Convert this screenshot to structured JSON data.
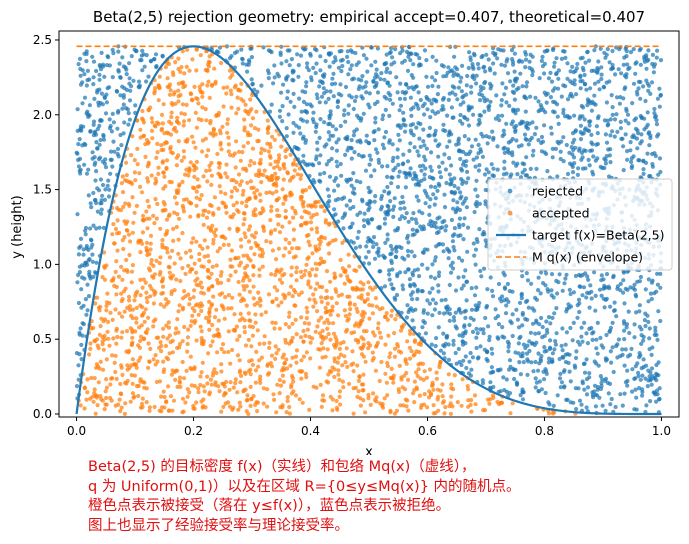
{
  "chart_data": {
    "type": "scatter",
    "title": "Beta(2,5) rejection geometry: empirical accept=0.407, theoretical=0.407",
    "xlabel": "x",
    "ylabel": "y (height)",
    "xlim": [
      -0.03,
      1.03
    ],
    "ylim": [
      -0.02,
      2.56
    ],
    "xticks": [
      0.0,
      0.2,
      0.4,
      0.6,
      0.8,
      1.0
    ],
    "xtick_labels": [
      "0.0",
      "0.2",
      "0.4",
      "0.6",
      "0.8",
      "1.0"
    ],
    "yticks": [
      0.0,
      0.5,
      1.0,
      1.5,
      2.0,
      2.5
    ],
    "ytick_labels": [
      "0.0",
      "0.5",
      "1.0",
      "1.5",
      "2.0",
      "2.5"
    ],
    "grid": false,
    "legend_position": "center-right",
    "envelope_M": 2.4576,
    "beta_params": [
      2,
      5
    ],
    "sample_count": 5000,
    "series": [
      {
        "name": "rejected",
        "kind": "scatter",
        "color": "#1f77b4",
        "rule": "y > f(x)"
      },
      {
        "name": "accepted",
        "kind": "scatter",
        "color": "#ff7f0e",
        "rule": "y <= f(x)"
      },
      {
        "name": "target f(x)=Beta(2,5)",
        "kind": "line",
        "color": "#1f77b4",
        "style": "solid",
        "formula": "30*x*(1-x)^4"
      },
      {
        "name": "M q(x) (envelope)",
        "kind": "line",
        "color": "#ff7f0e",
        "style": "dashed",
        "value": 2.4576
      }
    ]
  },
  "caption": {
    "line1": "Beta(2,5) 的目标密度 f(x)（实线）和包络 Mq(x)（虚线），",
    "line2": "q 为 Uniform(0,1)）以及在区域 R={0≤y≤Mq(x)} 内的随机点。",
    "line3": "橙色点表示被接受（落在 y≤f(x)），蓝色点表示被拒绝。",
    "line4": "图上也显示了经验接受率与理论接受率。"
  }
}
